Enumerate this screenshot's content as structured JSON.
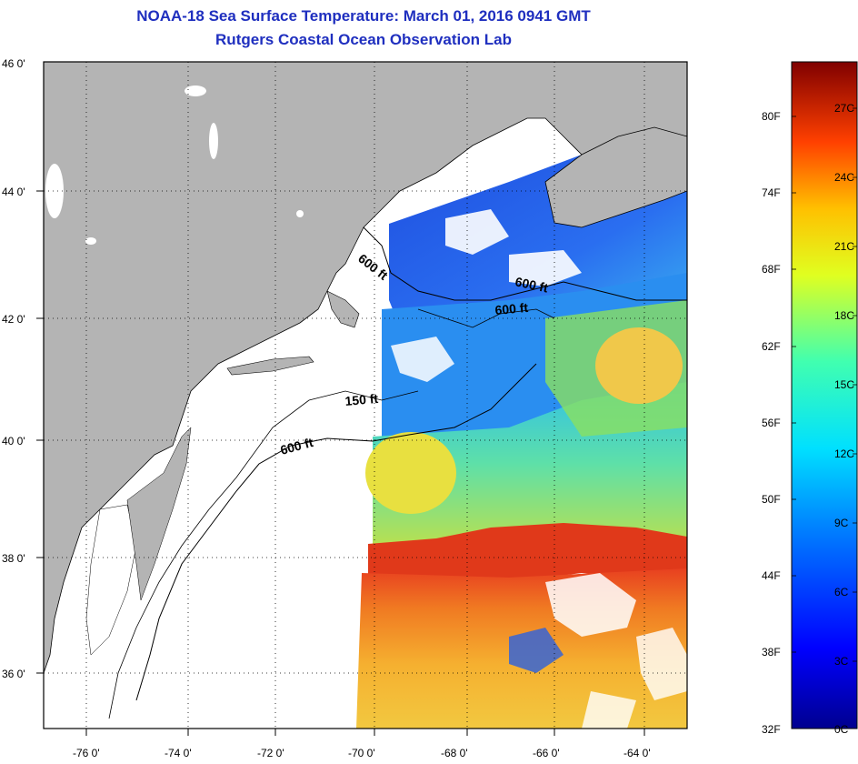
{
  "header": {
    "title": "NOAA-18 Sea Surface Temperature:  March 01, 2016 0941 GMT",
    "subtitle": "Rutgers Coastal Ocean Observation Lab"
  },
  "map": {
    "lon_labels": [
      "-76 0'",
      "-74 0'",
      "-72 0'",
      "-70 0'",
      "-68 0'",
      "-66 0'",
      "-64 0'"
    ],
    "lat_labels": [
      "46 0'",
      "44 0'",
      "42 0'",
      "40 0'",
      "38 0'",
      "36 0'"
    ],
    "contour_labels": [
      "600 ft",
      "600 ft",
      "600 ft",
      "150 ft",
      "600 ft"
    ],
    "colors": {
      "land": "#b4b4b4",
      "nodata": "#ffffff",
      "cold": "#1f4fe0",
      "cool": "#22c8e6",
      "mild": "#7ae08a",
      "warm": "#e8e040",
      "hot": "#f5a623",
      "hottest": "#e0391a"
    }
  },
  "colorbar": {
    "fahrenheit_labels": [
      "80F",
      "74F",
      "68F",
      "62F",
      "56F",
      "50F",
      "44F",
      "38F",
      "32F"
    ],
    "celsius_labels": [
      "27C",
      "24C",
      "21C",
      "18C",
      "15C",
      "12C",
      "9C",
      "6C",
      "3C",
      "0C"
    ]
  }
}
